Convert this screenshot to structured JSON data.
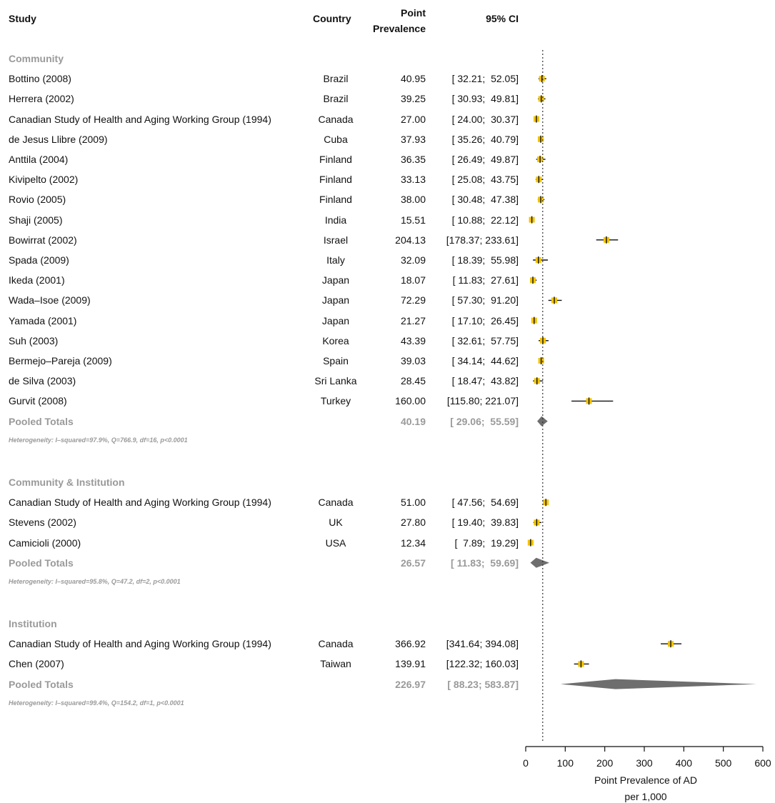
{
  "headers": {
    "study": "Study",
    "country": "Country",
    "prevalence_line1": "Point",
    "prevalence_line2": "Prevalence",
    "ci": "95% CI"
  },
  "chart_data": {
    "type": "forest",
    "xlabel_line1": "Point Prevalence of AD",
    "xlabel_line2": "per 1,000",
    "xlim": [
      0,
      600
    ],
    "xticks": [
      "0",
      "100",
      "200",
      "300",
      "400",
      "500",
      "600"
    ],
    "reference_line": 43,
    "groups": [
      {
        "name": "Community",
        "studies": [
          {
            "study": "Bottino (2008)",
            "country": "Brazil",
            "prev": "40.95",
            "ci": "[ 32.21;  52.05]",
            "est": 40.95,
            "lo": 32.21,
            "hi": 52.05
          },
          {
            "study": "Herrera (2002)",
            "country": "Brazil",
            "prev": "39.25",
            "ci": "[ 30.93;  49.81]",
            "est": 39.25,
            "lo": 30.93,
            "hi": 49.81
          },
          {
            "study": "Canadian Study of Health and Aging Working Group (1994)",
            "country": "Canada",
            "prev": "27.00",
            "ci": "[ 24.00;  30.37]",
            "est": 27.0,
            "lo": 24.0,
            "hi": 30.37
          },
          {
            "study": "de Jesus Llibre (2009)",
            "country": "Cuba",
            "prev": "37.93",
            "ci": "[ 35.26;  40.79]",
            "est": 37.93,
            "lo": 35.26,
            "hi": 40.79
          },
          {
            "study": "Anttila (2004)",
            "country": "Finland",
            "prev": "36.35",
            "ci": "[ 26.49;  49.87]",
            "est": 36.35,
            "lo": 26.49,
            "hi": 49.87
          },
          {
            "study": "Kivipelto (2002)",
            "country": "Finland",
            "prev": "33.13",
            "ci": "[ 25.08;  43.75]",
            "est": 33.13,
            "lo": 25.08,
            "hi": 43.75
          },
          {
            "study": "Rovio (2005)",
            "country": "Finland",
            "prev": "38.00",
            "ci": "[ 30.48;  47.38]",
            "est": 38.0,
            "lo": 30.48,
            "hi": 47.38
          },
          {
            "study": "Shaji (2005)",
            "country": "India",
            "prev": "15.51",
            "ci": "[ 10.88;  22.12]",
            "est": 15.51,
            "lo": 10.88,
            "hi": 22.12
          },
          {
            "study": "Bowirrat (2002)",
            "country": "Israel",
            "prev": "204.13",
            "ci": "[178.37; 233.61]",
            "est": 204.13,
            "lo": 178.37,
            "hi": 233.61
          },
          {
            "study": "Spada (2009)",
            "country": "Italy",
            "prev": "32.09",
            "ci": "[ 18.39;  55.98]",
            "est": 32.09,
            "lo": 18.39,
            "hi": 55.98
          },
          {
            "study": "Ikeda (2001)",
            "country": "Japan",
            "prev": "18.07",
            "ci": "[ 11.83;  27.61]",
            "est": 18.07,
            "lo": 11.83,
            "hi": 27.61
          },
          {
            "study": "Wada–Isoe (2009)",
            "country": "Japan",
            "prev": "72.29",
            "ci": "[ 57.30;  91.20]",
            "est": 72.29,
            "lo": 57.3,
            "hi": 91.2
          },
          {
            "study": "Yamada (2001)",
            "country": "Japan",
            "prev": "21.27",
            "ci": "[ 17.10;  26.45]",
            "est": 21.27,
            "lo": 17.1,
            "hi": 26.45
          },
          {
            "study": "Suh (2003)",
            "country": "Korea",
            "prev": "43.39",
            "ci": "[ 32.61;  57.75]",
            "est": 43.39,
            "lo": 32.61,
            "hi": 57.75
          },
          {
            "study": "Bermejo–Pareja (2009)",
            "country": "Spain",
            "prev": "39.03",
            "ci": "[ 34.14;  44.62]",
            "est": 39.03,
            "lo": 34.14,
            "hi": 44.62
          },
          {
            "study": "de Silva (2003)",
            "country": "Sri Lanka",
            "prev": "28.45",
            "ci": "[ 18.47;  43.82]",
            "est": 28.45,
            "lo": 18.47,
            "hi": 43.82
          },
          {
            "study": "Gurvit (2008)",
            "country": "Turkey",
            "prev": "160.00",
            "ci": "[115.80; 221.07]",
            "est": 160.0,
            "lo": 115.8,
            "hi": 221.07
          }
        ],
        "pooled": {
          "label": "Pooled Totals",
          "prev": "40.19",
          "ci": "[ 29.06;  55.59]",
          "est": 40.19,
          "lo": 29.06,
          "hi": 55.59
        },
        "heterogeneity": "Heterogeneity: I–squared=97.9%, Q=766.9, df=16, p<0.0001"
      },
      {
        "name": "Community & Institution",
        "studies": [
          {
            "study": "Canadian Study of Health and Aging Working Group (1994)",
            "country": "Canada",
            "prev": "51.00",
            "ci": "[ 47.56;  54.69]",
            "est": 51.0,
            "lo": 47.56,
            "hi": 54.69
          },
          {
            "study": "Stevens (2002)",
            "country": "UK",
            "prev": "27.80",
            "ci": "[ 19.40;  39.83]",
            "est": 27.8,
            "lo": 19.4,
            "hi": 39.83
          },
          {
            "study": "Camicioli (2000)",
            "country": "USA",
            "prev": "12.34",
            "ci": "[  7.89;  19.29]",
            "est": 12.34,
            "lo": 7.89,
            "hi": 19.29
          }
        ],
        "pooled": {
          "label": "Pooled Totals",
          "prev": "26.57",
          "ci": "[ 11.83;  59.69]",
          "est": 26.57,
          "lo": 11.83,
          "hi": 59.69
        },
        "heterogeneity": "Heterogeneity: I–squared=95.8%, Q=47.2, df=2, p<0.0001"
      },
      {
        "name": "Institution",
        "studies": [
          {
            "study": "Canadian Study of Health and Aging Working Group (1994)",
            "country": "Canada",
            "prev": "366.92",
            "ci": "[341.64; 394.08]",
            "est": 366.92,
            "lo": 341.64,
            "hi": 394.08
          },
          {
            "study": "Chen (2007)",
            "country": "Taiwan",
            "prev": "139.91",
            "ci": "[122.32; 160.03]",
            "est": 139.91,
            "lo": 122.32,
            "hi": 160.03
          }
        ],
        "pooled": {
          "label": "Pooled Totals",
          "prev": "226.97",
          "ci": "[ 88.23; 583.87]",
          "est": 226.97,
          "lo": 88.23,
          "hi": 583.87
        },
        "heterogeneity": "Heterogeneity: I–squared=99.4%, Q=154.2, df=1, p<0.0001"
      }
    ],
    "colors": {
      "point": "#f2c200",
      "line": "#111111",
      "diamond": "#6e6e6e",
      "pooled_text": "#9a9a9a"
    }
  }
}
